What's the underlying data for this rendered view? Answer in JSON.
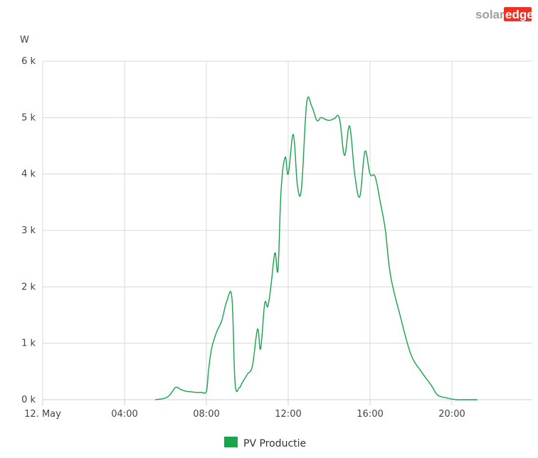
{
  "brand": {
    "logo_part1": "solar",
    "logo_part2": "edge",
    "logo_color_gray": "#9e9e9e",
    "logo_color_red": "#ee3124"
  },
  "colors": {
    "series": "#16a34a",
    "legend_swatch": "#1aa548",
    "grid": "#d8d8d8",
    "axis": "#c8d0e0"
  },
  "chart_data": {
    "type": "line",
    "title": "",
    "ylabel": "W",
    "xlabel": "",
    "ylim": [
      0,
      6000
    ],
    "xlim_hours": [
      0,
      24
    ],
    "grid": true,
    "legend_position": "bottom-center",
    "y_ticks": [
      {
        "value": 0,
        "label": "0 k"
      },
      {
        "value": 1000,
        "label": "1 k"
      },
      {
        "value": 2000,
        "label": "2 k"
      },
      {
        "value": 3000,
        "label": "3 k"
      },
      {
        "value": 4000,
        "label": "4 k"
      },
      {
        "value": 5000,
        "label": "5 k"
      },
      {
        "value": 6000,
        "label": "6 k"
      }
    ],
    "x_ticks": [
      {
        "value": 0,
        "label": "12. May"
      },
      {
        "value": 4,
        "label": "04:00"
      },
      {
        "value": 8,
        "label": "08:00"
      },
      {
        "value": 12,
        "label": "12:00"
      },
      {
        "value": 16,
        "label": "16:00"
      },
      {
        "value": 20,
        "label": "20:00"
      }
    ],
    "series": [
      {
        "name": "PV Productie",
        "x": [
          5.5,
          6.0,
          6.25,
          6.5,
          6.75,
          7.0,
          7.25,
          7.5,
          7.75,
          8.0,
          8.1,
          8.25,
          8.5,
          8.75,
          9.0,
          9.25,
          9.4,
          9.6,
          9.75,
          10.0,
          10.25,
          10.5,
          10.65,
          10.85,
          11.0,
          11.15,
          11.35,
          11.5,
          11.65,
          11.85,
          12.0,
          12.25,
          12.45,
          12.65,
          12.9,
          13.15,
          13.4,
          13.6,
          13.8,
          14.0,
          14.25,
          14.5,
          14.75,
          15.0,
          15.25,
          15.5,
          15.75,
          16.0,
          16.25,
          16.5,
          16.75,
          17.0,
          17.5,
          18.0,
          18.5,
          19.0,
          19.25,
          19.5,
          19.75,
          20.0,
          20.25,
          20.5,
          20.75,
          21.0,
          21.25
        ],
        "y": [
          0,
          30,
          100,
          220,
          180,
          150,
          140,
          130,
          130,
          150,
          500,
          900,
          1200,
          1400,
          1750,
          1800,
          300,
          210,
          300,
          450,
          600,
          1250,
          900,
          1700,
          1650,
          2000,
          2600,
          2300,
          3700,
          4300,
          4000,
          4700,
          3800,
          3750,
          5250,
          5200,
          4950,
          5000,
          4970,
          4950,
          4980,
          4990,
          4330,
          4850,
          4000,
          3600,
          4400,
          4000,
          3950,
          3500,
          3000,
          2200,
          1450,
          800,
          500,
          250,
          100,
          50,
          30,
          10,
          0,
          0,
          0,
          0,
          0
        ]
      }
    ]
  }
}
